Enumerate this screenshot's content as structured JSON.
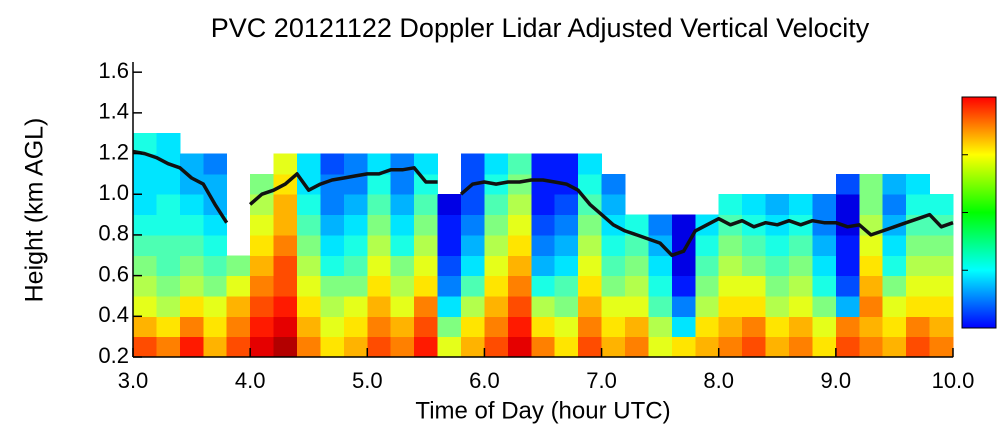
{
  "chart_data": {
    "type": "heatmap",
    "title": "PVC 20121122 Doppler Lidar Adjusted Vertical Velocity",
    "x_label": "Time of Day (hour UTC)",
    "y_label": "Height (km AGL)",
    "xlim": [
      3,
      10
    ],
    "ylim": [
      0.2,
      1.65
    ],
    "xticks": [
      {
        "value": 3,
        "label": "3.0"
      },
      {
        "value": 4,
        "label": "4.0"
      },
      {
        "value": 5,
        "label": "5.0"
      },
      {
        "value": 6,
        "label": "6.0"
      },
      {
        "value": 7,
        "label": "7.0"
      },
      {
        "value": 8,
        "label": "8.0"
      },
      {
        "value": 9,
        "label": "9.0"
      },
      {
        "value": 10,
        "label": "10.0"
      }
    ],
    "yticks": [
      0.2,
      0.4,
      0.6,
      0.8,
      {
        "value": 1,
        "label": "1.0"
      },
      1.2,
      1.4,
      1.6
    ],
    "x_bins": [
      3.0,
      3.2,
      3.4,
      3.6,
      3.8,
      4.0,
      4.2,
      4.4,
      4.6,
      4.8,
      5.0,
      5.2,
      5.4,
      5.6,
      5.8,
      6.0,
      6.2,
      6.4,
      6.6,
      6.8,
      7.0,
      7.2,
      7.4,
      7.6,
      7.8,
      8.0,
      8.2,
      8.4,
      8.6,
      8.8,
      9.0,
      9.2,
      9.4,
      9.6,
      9.8,
      10.0
    ],
    "y_bins": [
      0.2,
      0.3,
      0.4,
      0.5,
      0.6,
      0.7,
      0.8,
      0.9,
      1.0,
      1.1,
      1.2,
      1.3
    ],
    "clim": [
      -1,
      1
    ],
    "cticks": [
      -1,
      -0.5,
      0,
      0.5,
      1
    ],
    "colormap": "jet",
    "values": [
      [
        0.6,
        0.5,
        0.7,
        0.4,
        0.6,
        0.8,
        0.9,
        0.5,
        0.3,
        0.4,
        0.6,
        0.5,
        0.7,
        0.2,
        0.4,
        0.6,
        0.8,
        0.5,
        0.3,
        0.6,
        0.4,
        0.5,
        0.2,
        0.3,
        0.4,
        0.5,
        0.6,
        0.4,
        0.5,
        0.3,
        0.6,
        0.5,
        0.4,
        0.6,
        0.5
      ],
      [
        0.4,
        0.3,
        0.5,
        0.3,
        0.5,
        0.7,
        0.8,
        0.4,
        0.2,
        0.3,
        0.5,
        0.4,
        0.6,
        0.0,
        0.3,
        0.5,
        0.7,
        0.3,
        0.2,
        0.5,
        0.3,
        0.4,
        0.1,
        -0.3,
        0.3,
        0.4,
        0.5,
        0.3,
        0.4,
        0.2,
        0.5,
        0.4,
        0.3,
        0.5,
        0.4
      ],
      [
        0.2,
        0.1,
        0.3,
        0.2,
        0.4,
        0.6,
        0.7,
        0.3,
        0.1,
        0.2,
        0.4,
        0.2,
        0.5,
        -0.3,
        0.1,
        0.4,
        0.6,
        0.1,
        0.0,
        0.4,
        0.2,
        0.2,
        -0.1,
        -0.5,
        0.1,
        0.3,
        0.3,
        0.1,
        0.2,
        0.0,
        -0.4,
        0.5,
        0.2,
        0.3,
        0.3
      ],
      [
        0.1,
        0.0,
        0.1,
        0.0,
        0.2,
        0.5,
        0.6,
        0.2,
        0.0,
        0.0,
        0.3,
        0.1,
        0.3,
        -0.5,
        -0.1,
        0.3,
        0.5,
        -0.2,
        -0.1,
        0.3,
        0.0,
        0.1,
        -0.2,
        -0.7,
        0.0,
        0.2,
        0.2,
        0.0,
        0.1,
        -0.2,
        -0.6,
        0.4,
        0.0,
        0.2,
        0.2
      ],
      [
        0.0,
        -0.1,
        0.0,
        -0.1,
        0.0,
        0.4,
        0.6,
        0.1,
        -0.2,
        -0.1,
        0.2,
        0.0,
        0.2,
        -0.6,
        -0.3,
        0.2,
        0.4,
        -0.4,
        -0.3,
        0.2,
        -0.1,
        0.0,
        -0.3,
        -0.8,
        -0.1,
        0.1,
        0.0,
        -0.1,
        0.0,
        -0.3,
        -0.7,
        0.3,
        -0.2,
        0.1,
        0.1
      ],
      [
        -0.1,
        -0.1,
        -0.1,
        -0.2,
        null,
        0.3,
        0.5,
        0.0,
        -0.3,
        -0.2,
        0.1,
        -0.2,
        0.1,
        -0.7,
        -0.4,
        0.1,
        0.3,
        -0.5,
        -0.4,
        0.1,
        -0.2,
        -0.1,
        -0.4,
        -0.8,
        -0.2,
        0.0,
        -0.1,
        -0.2,
        -0.1,
        -0.4,
        -0.7,
        0.2,
        -0.3,
        0.0,
        0.0
      ],
      [
        -0.2,
        -0.2,
        -0.2,
        -0.3,
        null,
        0.2,
        0.4,
        -0.1,
        -0.4,
        -0.3,
        0.0,
        -0.3,
        0.0,
        -0.7,
        -0.5,
        0.0,
        0.2,
        -0.6,
        -0.5,
        0.0,
        -0.3,
        -0.2,
        -0.5,
        -0.8,
        -0.3,
        -0.1,
        -0.2,
        -0.3,
        -0.2,
        -0.5,
        -0.8,
        0.1,
        -0.4,
        -0.1,
        -0.1
      ],
      [
        -0.3,
        -0.2,
        -0.3,
        -0.4,
        null,
        0.1,
        0.4,
        -0.2,
        -0.5,
        -0.4,
        -0.1,
        -0.4,
        -0.1,
        -0.8,
        -0.6,
        -0.1,
        0.1,
        -0.7,
        -0.6,
        -0.1,
        -0.4,
        null,
        null,
        null,
        null,
        -0.2,
        -0.3,
        -0.4,
        -0.3,
        -0.5,
        -0.8,
        0.0,
        -0.5,
        -0.2,
        -0.2
      ],
      [
        -0.3,
        -0.3,
        -0.4,
        -0.4,
        null,
        0.0,
        0.3,
        -0.3,
        -0.5,
        -0.5,
        -0.2,
        -0.5,
        -0.2,
        null,
        -0.6,
        -0.2,
        0.0,
        -0.7,
        -0.7,
        -0.2,
        -0.5,
        null,
        null,
        null,
        null,
        null,
        null,
        null,
        null,
        null,
        -0.6,
        0.0,
        -0.4,
        -0.3,
        null
      ],
      [
        -0.3,
        -0.3,
        -0.4,
        -0.5,
        null,
        null,
        0.2,
        -0.3,
        -0.6,
        -0.5,
        -0.3,
        -0.5,
        -0.3,
        null,
        -0.6,
        -0.3,
        -0.1,
        -0.7,
        -0.7,
        -0.3,
        null,
        null,
        null,
        null,
        null,
        null,
        null,
        null,
        null,
        null,
        null,
        null,
        null,
        null,
        null
      ],
      [
        -0.2,
        -0.3,
        null,
        null,
        null,
        null,
        null,
        null,
        null,
        null,
        null,
        null,
        null,
        null,
        null,
        null,
        null,
        null,
        null,
        null,
        null,
        null,
        null,
        null,
        null,
        null,
        null,
        null,
        null,
        null,
        null,
        null,
        null,
        null,
        null
      ]
    ],
    "series": [
      {
        "color": "#111111",
        "x": [
          3.0,
          3.1,
          3.2,
          3.3,
          3.4,
          3.5,
          3.6,
          3.7,
          3.8,
          3.9,
          4.0,
          4.1,
          4.2,
          4.3,
          4.4,
          4.5,
          4.6,
          4.7,
          4.8,
          4.9,
          5.0,
          5.1,
          5.2,
          5.3,
          5.4,
          5.5,
          5.6,
          5.7,
          5.8,
          5.9,
          6.0,
          6.1,
          6.2,
          6.3,
          6.4,
          6.5,
          6.6,
          6.7,
          6.8,
          6.9,
          7.0,
          7.1,
          7.2,
          7.3,
          7.4,
          7.5,
          7.6,
          7.7,
          7.8,
          7.9,
          8.0,
          8.1,
          8.2,
          8.3,
          8.4,
          8.5,
          8.6,
          8.7,
          8.8,
          8.9,
          9.0,
          9.1,
          9.2,
          9.3,
          9.4,
          9.5,
          9.6,
          9.7,
          9.8,
          9.9,
          10.0
        ],
        "values": [
          1.21,
          1.2,
          1.18,
          1.15,
          1.13,
          1.08,
          1.05,
          0.95,
          0.86,
          null,
          0.95,
          1.0,
          1.02,
          1.05,
          1.1,
          1.02,
          1.05,
          1.07,
          1.08,
          1.09,
          1.1,
          1.1,
          1.12,
          1.12,
          1.13,
          1.06,
          1.06,
          null,
          1.0,
          1.05,
          1.06,
          1.05,
          1.06,
          1.06,
          1.07,
          1.07,
          1.06,
          1.05,
          1.02,
          0.95,
          0.9,
          0.85,
          0.82,
          0.8,
          0.78,
          0.76,
          0.7,
          0.72,
          0.82,
          0.85,
          0.88,
          0.85,
          0.87,
          0.84,
          0.86,
          0.85,
          0.87,
          0.85,
          0.87,
          0.86,
          0.86,
          0.84,
          0.85,
          0.8,
          0.82,
          0.84,
          0.86,
          0.88,
          0.9,
          0.84,
          0.86
        ]
      }
    ]
  }
}
